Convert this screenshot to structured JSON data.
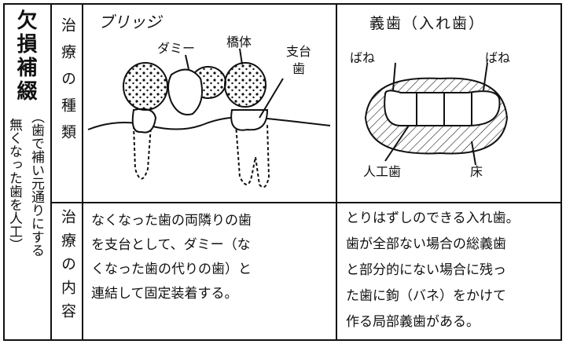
{
  "category": {
    "title": "欠損補綴",
    "note": [
      "（歯で補い元通りにする",
      "無くなった歯を人工）"
    ]
  },
  "rows": [
    {
      "label": "治療の種類"
    },
    {
      "label": "治療の内容"
    }
  ],
  "columns": [
    {
      "title": "ブリッジ",
      "labels": [
        "ダミー",
        "橋体",
        "支台歯"
      ],
      "lines": [
        "なくなった歯の両隣りの歯",
        "を支台として、ダミー（な",
        "くなった歯の代りの歯）と",
        "連結して固定装着する。"
      ]
    },
    {
      "title": "義歯（入れ歯）",
      "labels": [
        "ばね",
        "ばね",
        "人工歯",
        "床"
      ],
      "lines": [
        "とりはずしのできる入れ歯。",
        "歯が全部ない場合の総義歯",
        "と部分的にない場合に残っ",
        "た歯に鉤（バネ）をかけて",
        "作る局部義歯がある。"
      ]
    }
  ]
}
